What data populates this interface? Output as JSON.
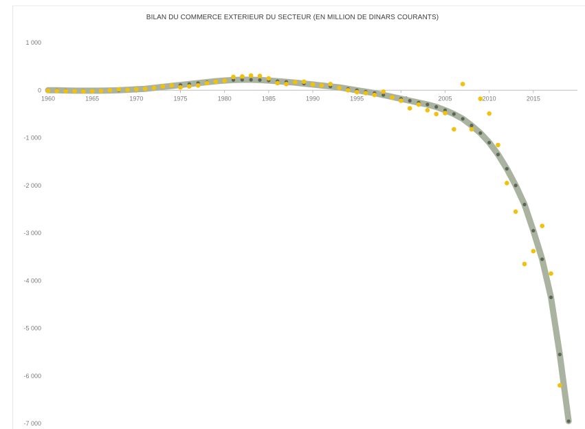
{
  "chart_data": {
    "type": "scatter",
    "title": "BILAN DU COMMERCE EXTERIEUR DU SECTEUR (EN MILLION DE DINARS COURANTS)",
    "xlabel": "",
    "ylabel": "",
    "xlim": [
      1960,
      2020
    ],
    "ylim": [
      -7000,
      1000
    ],
    "x_ticks": [
      1960,
      1965,
      1970,
      1975,
      1980,
      1985,
      1990,
      1995,
      2000,
      2005,
      2010,
      2015
    ],
    "x_tick_labels": [
      "1960",
      "1965",
      "1970",
      "1975",
      "1980",
      "1985",
      "1990",
      "1995",
      "2000",
      "2005",
      "2010",
      "2015"
    ],
    "y_ticks": [
      1000,
      0,
      -1000,
      -2000,
      -3000,
      -4000,
      -5000,
      -6000,
      -7000
    ],
    "y_tick_labels": [
      "1 000",
      "0",
      "-1 000",
      "-2 000",
      "-3 000",
      "-4 000",
      "-5 000",
      "-6 000",
      "-7 000"
    ],
    "grid": false,
    "legend": "none",
    "colors": {
      "points": "#f2c10d",
      "trend": "#a9b3a0",
      "trend_dots": "#5c6656",
      "axis": "#bdbdbd"
    },
    "series": [
      {
        "kind": "points",
        "x": [
          1960,
          1961,
          1962,
          1963,
          1964,
          1965,
          1966,
          1967,
          1968,
          1969,
          1970,
          1971,
          1972,
          1973,
          1974,
          1975,
          1976,
          1977,
          1978,
          1979,
          1980,
          1981,
          1982,
          1983,
          1984,
          1985,
          1986,
          1987,
          1988,
          1989,
          1990,
          1991,
          1992,
          1993,
          1994,
          1995,
          1996,
          1997,
          1998,
          1999,
          2000,
          2001,
          2002,
          2003,
          2004,
          2005,
          2006,
          2007,
          2008,
          2009,
          2010,
          2011,
          2012,
          2013,
          2014,
          2015,
          2016,
          2017,
          2018
        ],
        "y": [
          -10,
          -15,
          -20,
          -20,
          -25,
          -20,
          -15,
          0,
          20,
          10,
          20,
          30,
          50,
          80,
          100,
          60,
          80,
          100,
          150,
          180,
          200,
          280,
          290,
          310,
          300,
          250,
          150,
          130,
          170,
          180,
          120,
          100,
          130,
          50,
          0,
          -40,
          -60,
          -100,
          -30,
          -150,
          -220,
          -380,
          -300,
          -420,
          -500,
          -480,
          -820,
          130,
          -820,
          -180,
          -490,
          -1150,
          -1950,
          -2550,
          -3650,
          -3380,
          -2850,
          -3850,
          -6200
        ]
      },
      {
        "kind": "trend",
        "x": [
          1960,
          1961,
          1962,
          1963,
          1964,
          1965,
          1966,
          1967,
          1968,
          1969,
          1970,
          1971,
          1972,
          1973,
          1974,
          1975,
          1976,
          1977,
          1978,
          1979,
          1980,
          1981,
          1982,
          1983,
          1984,
          1985,
          1986,
          1987,
          1988,
          1989,
          1990,
          1991,
          1992,
          1993,
          1994,
          1995,
          1996,
          1997,
          1998,
          1999,
          2000,
          2001,
          2002,
          2003,
          2004,
          2005,
          2006,
          2007,
          2008,
          2009,
          2010,
          2011,
          2012,
          2013,
          2014,
          2015,
          2016,
          2017,
          2018,
          2019
        ],
        "y": [
          0,
          0,
          -5,
          -10,
          -10,
          -10,
          -10,
          -5,
          0,
          10,
          20,
          30,
          50,
          70,
          90,
          110,
          130,
          150,
          170,
          190,
          205,
          215,
          220,
          220,
          215,
          205,
          190,
          175,
          160,
          140,
          120,
          100,
          80,
          60,
          30,
          0,
          -30,
          -60,
          -100,
          -140,
          -180,
          -220,
          -260,
          -300,
          -350,
          -420,
          -500,
          -600,
          -740,
          -900,
          -1100,
          -1350,
          -1650,
          -2000,
          -2400,
          -2950,
          -3550,
          -4350,
          -5550,
          -6950
        ]
      }
    ]
  }
}
